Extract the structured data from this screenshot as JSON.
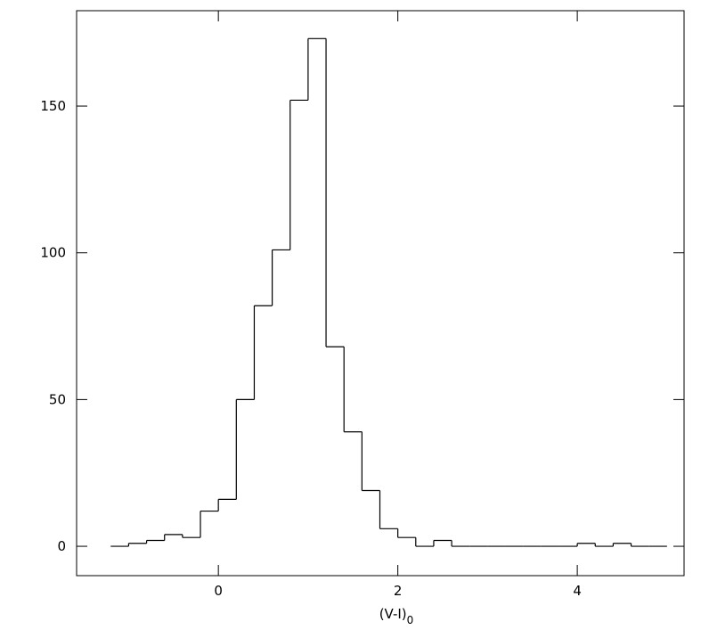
{
  "chart_data": {
    "type": "histogram",
    "xlabel": "(V-I)",
    "xlabel_subscript": "0",
    "bins": [
      -1.2,
      -1.0,
      -0.8,
      -0.6,
      -0.4,
      -0.2,
      0,
      0.2,
      0.4,
      0.6,
      0.8,
      1.0,
      1.2,
      1.4,
      1.6,
      1.8,
      2.0,
      2.2,
      2.4,
      2.6,
      2.8,
      3.0,
      3.2,
      3.4,
      3.6,
      3.8,
      4.0,
      4.2,
      4.4,
      4.6,
      4.8,
      5.0
    ],
    "values": [
      0,
      1,
      2,
      4,
      3,
      12,
      16,
      50,
      82,
      101,
      152,
      173,
      68,
      39,
      19,
      6,
      3,
      0,
      2,
      0,
      0,
      0,
      0,
      0,
      0,
      0,
      1,
      0,
      1,
      0,
      0
    ],
    "color": "#000000",
    "xlim": [
      -1.58,
      5.19
    ],
    "ylim": [
      -10,
      182.5
    ],
    "xticks": [
      0,
      2,
      4
    ],
    "yticks": [
      0,
      50,
      100,
      150
    ]
  }
}
